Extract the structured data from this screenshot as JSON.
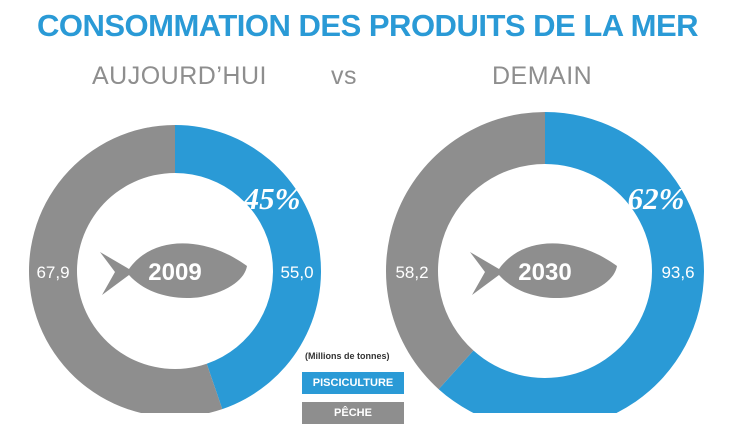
{
  "header": {
    "title": "CONSOMMATION DES PRODUITS DE LA MER",
    "left_label": "AUJOURD’HUI",
    "vs_label": "vs",
    "right_label": "DEMAIN"
  },
  "legend": {
    "unit": "(Millions de tonnes)",
    "items": [
      {
        "label": "PISCICULTURE",
        "color": "#2a9ad6"
      },
      {
        "label": "PÊCHE",
        "color": "#8e8e8e"
      }
    ]
  },
  "colors": {
    "aquaculture": "#2a9ad6",
    "fishing": "#8e8e8e",
    "title": "#2a9ad6"
  },
  "chart_data": [
    {
      "type": "pie",
      "center_label": "2009",
      "categories": [
        "PISCICULTURE",
        "PÊCHE"
      ],
      "values": [
        55.0,
        67.9
      ],
      "value_labels": [
        "55,0",
        "67,9"
      ],
      "percent_label": "45%"
    },
    {
      "type": "pie",
      "center_label": "2030",
      "categories": [
        "PISCICULTURE",
        "PÊCHE"
      ],
      "values": [
        93.6,
        58.2
      ],
      "value_labels": [
        "93,6",
        "58,2"
      ],
      "percent_label": "62%"
    }
  ]
}
